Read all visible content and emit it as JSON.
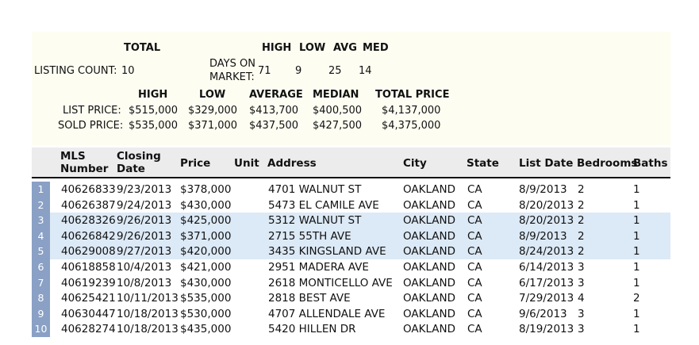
{
  "summary": {
    "total_label": "TOTAL",
    "listing_count_label": "LISTING COUNT:",
    "listing_count_value": "10",
    "days_header": {
      "high": "HIGH",
      "low": "LOW",
      "avg": "AVG",
      "med": "MED"
    },
    "days_label_line1": "DAYS ON",
    "days_label_line2": "MARKET:",
    "days_values": {
      "high": "71",
      "low": "9",
      "avg": "25",
      "med": "14"
    },
    "price_header": {
      "high": "HIGH",
      "low": "LOW",
      "average": "AVERAGE",
      "median": "MEDIAN",
      "total": "TOTAL PRICE"
    },
    "list_price": {
      "label": "LIST PRICE:",
      "high": "$515,000",
      "low": "$329,000",
      "average": "$413,700",
      "median": "$400,500",
      "total": "$4,137,000"
    },
    "sold_price": {
      "label": "SOLD PRICE:",
      "high": "$535,000",
      "low": "$371,000",
      "average": "$437,500",
      "median": "$427,500",
      "total": "$4,375,000"
    }
  },
  "table": {
    "headers": {
      "mls_line1": "MLS",
      "mls_line2": "Number",
      "closing_line1": "Closing",
      "closing_line2": "Date",
      "price": "Price",
      "unit": "Unit",
      "address": "Address",
      "city": "City",
      "state": "State",
      "list_date": "List Date",
      "bedrooms": "Bedrooms",
      "baths": "Baths"
    },
    "rows": [
      {
        "n": "1",
        "mls": "40626833",
        "closing": "9/23/2013",
        "price": "$378,000",
        "unit": "",
        "address": "4701 WALNUT ST",
        "city": "OAKLAND",
        "state": "CA",
        "list_date": "8/9/2013",
        "bedrooms": "2",
        "baths": "1"
      },
      {
        "n": "2",
        "mls": "40626387",
        "closing": "9/24/2013",
        "price": "$430,000",
        "unit": "",
        "address": "5473 EL CAMILE AVE",
        "city": "OAKLAND",
        "state": "CA",
        "list_date": "8/20/2013",
        "bedrooms": "2",
        "baths": "1"
      },
      {
        "n": "3",
        "mls": "40628326",
        "closing": "9/26/2013",
        "price": "$425,000",
        "unit": "",
        "address": "5312 WALNUT ST",
        "city": "OAKLAND",
        "state": "CA",
        "list_date": "8/20/2013",
        "bedrooms": "2",
        "baths": "1"
      },
      {
        "n": "4",
        "mls": "40626842",
        "closing": "9/26/2013",
        "price": "$371,000",
        "unit": "",
        "address": "2715 55TH AVE",
        "city": "OAKLAND",
        "state": "CA",
        "list_date": "8/9/2013",
        "bedrooms": "2",
        "baths": "1"
      },
      {
        "n": "5",
        "mls": "40629008",
        "closing": "9/27/2013",
        "price": "$420,000",
        "unit": "",
        "address": "3435 KINGSLAND AVE",
        "city": "OAKLAND",
        "state": "CA",
        "list_date": "8/24/2013",
        "bedrooms": "2",
        "baths": "1"
      },
      {
        "n": "6",
        "mls": "40618858",
        "closing": "10/4/2013",
        "price": "$421,000",
        "unit": "",
        "address": "2951 MADERA AVE",
        "city": "OAKLAND",
        "state": "CA",
        "list_date": "6/14/2013",
        "bedrooms": "3",
        "baths": "1"
      },
      {
        "n": "7",
        "mls": "40619239",
        "closing": "10/8/2013",
        "price": "$430,000",
        "unit": "",
        "address": "2618 MONTICELLO AVE",
        "city": "OAKLAND",
        "state": "CA",
        "list_date": "6/17/2013",
        "bedrooms": "3",
        "baths": "1"
      },
      {
        "n": "8",
        "mls": "40625421",
        "closing": "10/11/2013",
        "price": "$535,000",
        "unit": "",
        "address": "2818 BEST AVE",
        "city": "OAKLAND",
        "state": "CA",
        "list_date": "7/29/2013",
        "bedrooms": "4",
        "baths": "2"
      },
      {
        "n": "9",
        "mls": "40630447",
        "closing": "10/18/2013",
        "price": "$530,000",
        "unit": "",
        "address": "4707 ALLENDALE AVE",
        "city": "OAKLAND",
        "state": "CA",
        "list_date": "9/6/2013",
        "bedrooms": "3",
        "baths": "1"
      },
      {
        "n": "10",
        "mls": "40628274",
        "closing": "10/18/2013",
        "price": "$435,000",
        "unit": "",
        "address": "5420 HILLEN DR",
        "city": "OAKLAND",
        "state": "CA",
        "list_date": "8/19/2013",
        "bedrooms": "3",
        "baths": "1"
      }
    ],
    "highlighted_rows": [
      3,
      4,
      5
    ],
    "highlight_color": "#dce9f6",
    "row_number_color": "#8aa0c5"
  }
}
